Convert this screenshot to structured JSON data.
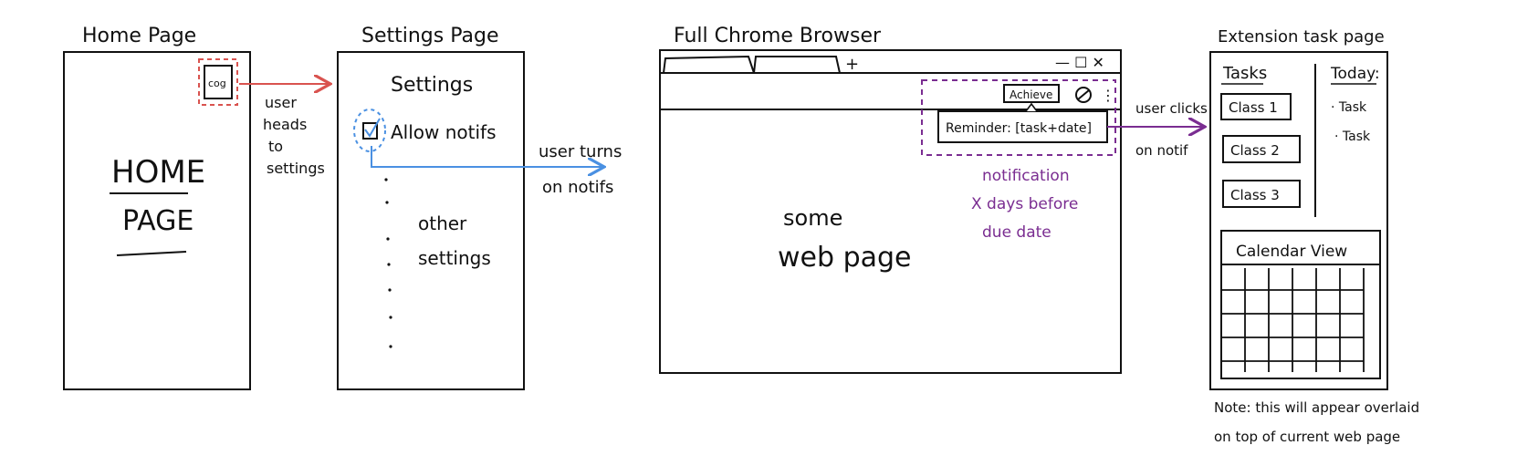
{
  "colors": {
    "ink": "#111111",
    "red": "#d9534f",
    "blue": "#4a90e2",
    "purple": "#7a2d91"
  },
  "home": {
    "title": "Home Page",
    "cog_label": "cog",
    "big_text_line1": "HOME",
    "big_text_line2": "PAGE",
    "arrow_caption": [
      "user",
      "heads",
      "to",
      "settings"
    ]
  },
  "settings": {
    "title": "Settings Page",
    "heading": "Settings",
    "allow_label": "Allow notifs",
    "other_line1": "other",
    "other_line2": "settings",
    "arrow_caption": [
      "user turns",
      "on notifs"
    ]
  },
  "browser": {
    "title": "Full Chrome Browser",
    "new_tab": "+",
    "window_controls": "— ☐ ✕",
    "achieve_label": "Achieve",
    "reminder_text": "Reminder: [task+date]",
    "note_lines": [
      "notification",
      "X days before",
      "due date"
    ],
    "page_line1": "some",
    "page_line2": "web page",
    "arrow_caption": [
      "user clicks",
      "on notif"
    ]
  },
  "extension": {
    "title": "Extension task page",
    "tasks_heading": "Tasks",
    "classes": [
      "Class 1",
      "Class 2",
      "Class 3"
    ],
    "today_heading": "Today:",
    "today_items": [
      "· Task",
      "· Task"
    ],
    "calendar_title": "Calendar View",
    "note_line1": "Note: this will appear overlaid",
    "note_line2": "on top of current web page"
  }
}
